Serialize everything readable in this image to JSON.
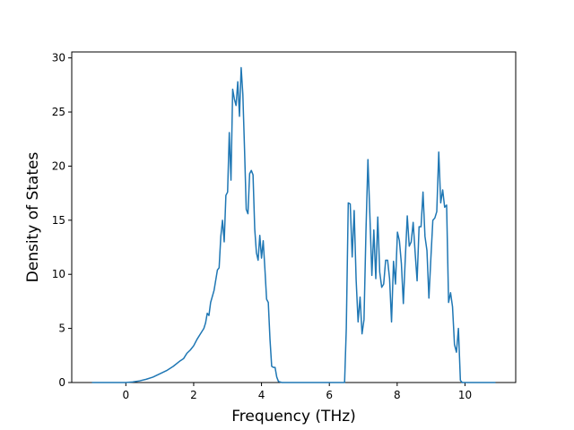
{
  "chart_data": {
    "type": "line",
    "xlabel": "Frequency (THz)",
    "ylabel": "Density of States",
    "xlim": [
      -1.595,
      11.495
    ],
    "ylim": [
      0,
      30.55
    ],
    "xticks": [
      0,
      2,
      4,
      6,
      8,
      10
    ],
    "yticks": [
      0,
      5,
      10,
      15,
      20,
      25,
      30
    ],
    "series": [
      {
        "name": "DOS",
        "color": "#1f77b4",
        "x": [
          -1,
          0,
          0.2,
          0.4,
          0.6,
          0.8,
          1.0,
          1.2,
          1.4,
          1.6,
          1.7,
          1.8,
          1.9,
          2.0,
          2.1,
          2.2,
          2.3,
          2.35,
          2.4,
          2.45,
          2.5,
          2.6,
          2.7,
          2.75,
          2.8,
          2.85,
          2.9,
          2.95,
          3.0,
          3.05,
          3.1,
          3.15,
          3.2,
          3.25,
          3.3,
          3.35,
          3.4,
          3.45,
          3.5,
          3.55,
          3.6,
          3.65,
          3.7,
          3.75,
          3.8,
          3.85,
          3.9,
          3.95,
          4.0,
          4.05,
          4.1,
          4.15,
          4.2,
          4.25,
          4.3,
          4.35,
          4.4,
          4.45,
          4.5,
          4.6,
          6.45,
          6.5,
          6.558,
          6.616,
          6.674,
          6.732,
          6.79,
          6.848,
          6.906,
          6.964,
          7.022,
          7.08,
          7.138,
          7.196,
          7.254,
          7.312,
          7.37,
          7.428,
          7.486,
          7.544,
          7.602,
          7.66,
          7.718,
          7.776,
          7.834,
          7.892,
          7.95,
          8.008,
          8.066,
          8.124,
          8.182,
          8.24,
          8.298,
          8.356,
          8.414,
          8.472,
          8.53,
          8.588,
          8.646,
          8.704,
          8.762,
          8.82,
          8.878,
          8.936,
          8.994,
          9.052,
          9.11,
          9.168,
          9.226,
          9.284,
          9.342,
          9.4,
          9.458,
          9.516,
          9.574,
          9.632,
          9.69,
          9.748,
          9.806,
          9.864,
          9.92,
          10.9
        ],
        "values": [
          0,
          0,
          0.05,
          0.15,
          0.3,
          0.5,
          0.8,
          1.1,
          1.5,
          2.0,
          2.2,
          2.7,
          3.0,
          3.4,
          4.0,
          4.5,
          5.0,
          5.5,
          6.4,
          6.2,
          7.4,
          8.5,
          10.4,
          10.6,
          13.5,
          15.0,
          13.0,
          17.3,
          17.6,
          23.1,
          18.7,
          27.1,
          26.2,
          25.6,
          27.8,
          24.6,
          29.1,
          26.6,
          21.5,
          16.0,
          15.6,
          19.3,
          19.6,
          19.2,
          14.2,
          12.0,
          11.3,
          13.6,
          11.5,
          13.1,
          10.5,
          7.7,
          7.4,
          4.0,
          1.5,
          1.4,
          1.4,
          0.5,
          0.1,
          0,
          0,
          5.0,
          16.6,
          16.5,
          11.6,
          15.9,
          9.5,
          5.6,
          7.9,
          4.5,
          5.8,
          14.0,
          20.6,
          15.4,
          9.9,
          14.1,
          9.6,
          15.3,
          10.2,
          8.8,
          9.1,
          11.3,
          11.3,
          9.6,
          5.6,
          11.2,
          9.1,
          13.9,
          13.1,
          11.0,
          7.3,
          11.5,
          15.4,
          12.6,
          13.0,
          14.8,
          12.0,
          9.4,
          14.4,
          14.4,
          17.6,
          13.5,
          12.2,
          7.8,
          11.5,
          15.0,
          15.2,
          15.8,
          21.3,
          16.6,
          17.8,
          16.2,
          16.4,
          7.4,
          8.3,
          7.0,
          3.5,
          2.8,
          5.0,
          0.2,
          0,
          0
        ]
      }
    ]
  }
}
